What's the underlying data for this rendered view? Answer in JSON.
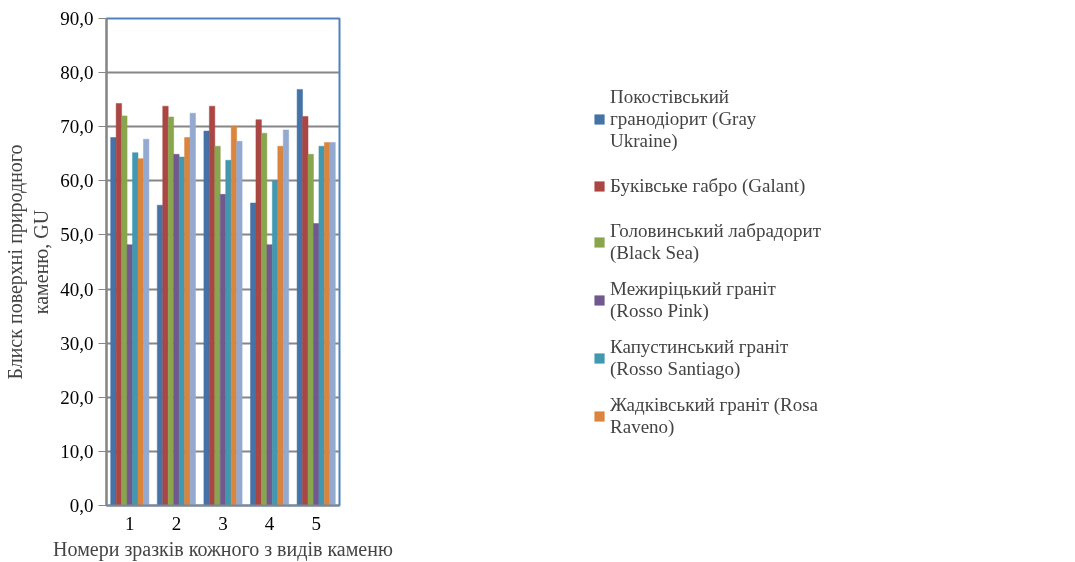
{
  "chart_data": {
    "type": "bar",
    "xlabel": "Номери зразків кожного з видів каменю",
    "ylabel": "Блиск поверхні природного каменю, GU",
    "categories": [
      "1",
      "2",
      "3",
      "4",
      "5"
    ],
    "ylim": [
      0,
      90
    ],
    "yticks": [
      {
        "value": 0,
        "label": "0,0"
      },
      {
        "value": 10,
        "label": "10,0"
      },
      {
        "value": 20,
        "label": "20,0"
      },
      {
        "value": 30,
        "label": "30,0"
      },
      {
        "value": 40,
        "label": "40,0"
      },
      {
        "value": 50,
        "label": "50,0"
      },
      {
        "value": 60,
        "label": "60,0"
      },
      {
        "value": 70,
        "label": "70,0"
      },
      {
        "value": 80,
        "label": "80,0"
      },
      {
        "value": 90,
        "label": "90,0"
      }
    ],
    "grid": "y",
    "legend": "right",
    "series": [
      {
        "name": "Покостівський гранодіорит (Gray Ukraine)",
        "color": "#4572a7",
        "values": [
          68.0,
          55.5,
          69.2,
          55.9,
          76.9
        ]
      },
      {
        "name": "Буківське габро (Galant)",
        "color": "#aa4643",
        "values": [
          74.3,
          73.8,
          73.8,
          71.3,
          71.9
        ]
      },
      {
        "name": "Головинський лабрадорит (Black Sea)",
        "color": "#89a54e",
        "values": [
          72.0,
          71.8,
          66.4,
          68.8,
          64.9
        ]
      },
      {
        "name": "Межиріцький граніт (Rosso Pink)",
        "color": "#71588f",
        "values": [
          48.2,
          64.9,
          57.5,
          48.2,
          52.1
        ]
      },
      {
        "name": "Капустинський граніт (Rosso Santiago)",
        "color": "#4198af",
        "values": [
          65.2,
          64.4,
          63.8,
          60.0,
          66.4
        ]
      },
      {
        "name": "Жадківський граніт (Rosa Raveno)",
        "color": "#db843d",
        "values": [
          64.1,
          68.0,
          70.1,
          66.4,
          67.1
        ]
      },
      {
        "color": "#93a9cf",
        "values": [
          67.7,
          72.5,
          67.3,
          69.4,
          67.1
        ]
      }
    ]
  }
}
